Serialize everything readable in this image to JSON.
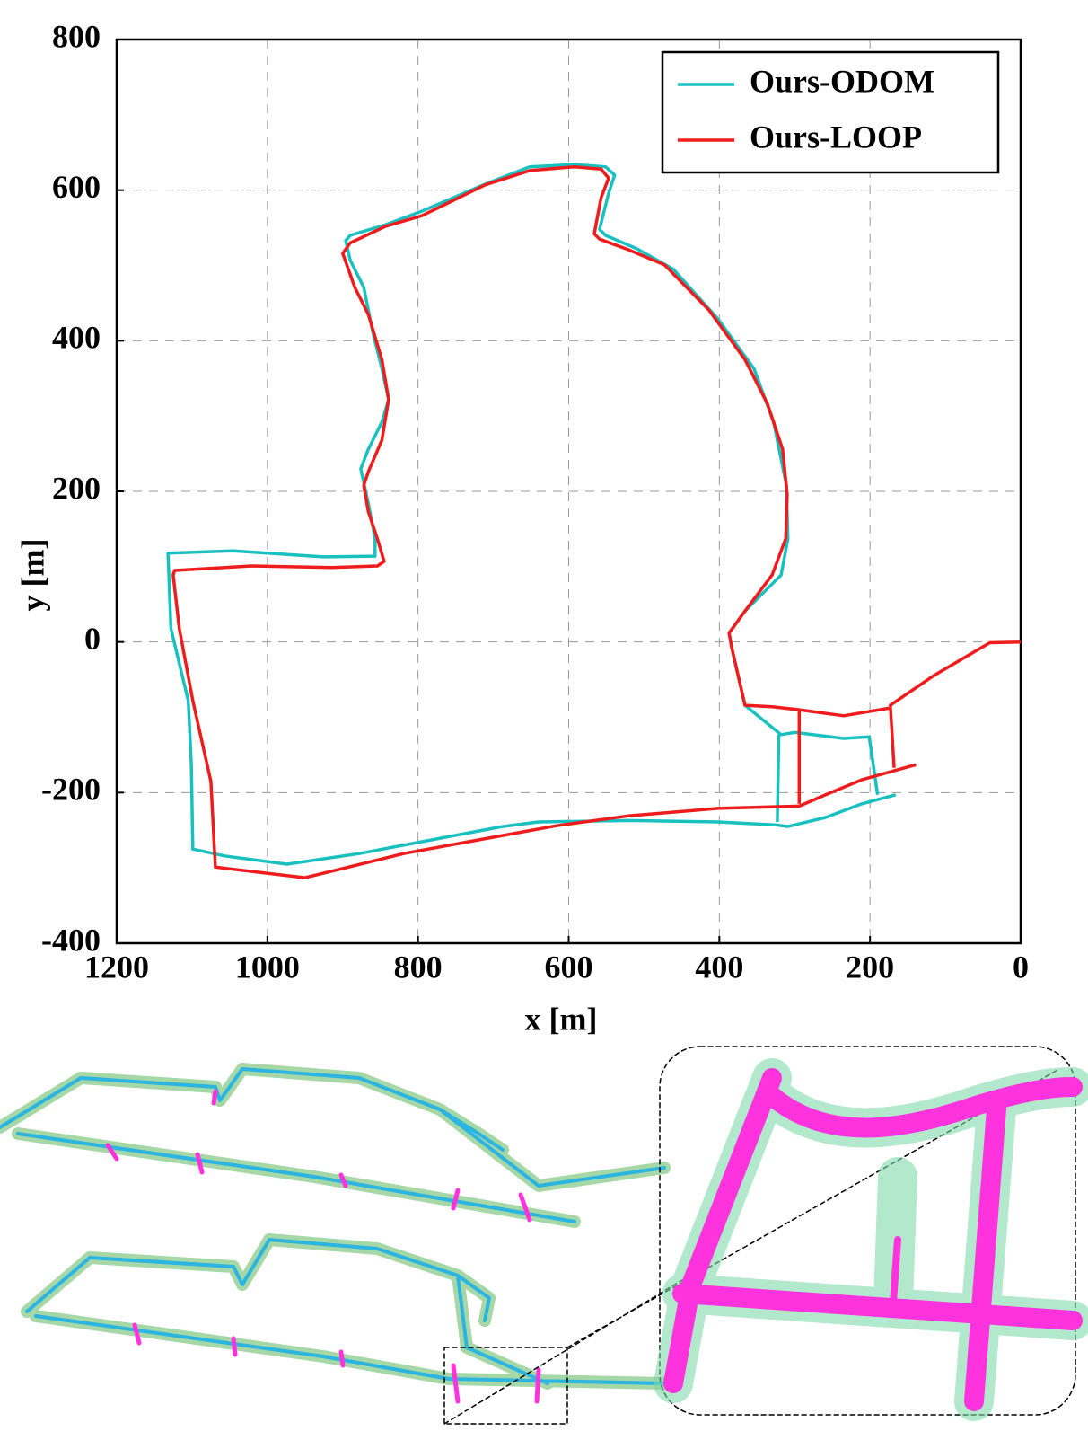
{
  "chart_data": {
    "type": "line",
    "xlabel": "x [m]",
    "ylabel": "y [m]",
    "xlim": [
      1200,
      0
    ],
    "ylim": [
      -400,
      800
    ],
    "xticks": [
      1200,
      1000,
      800,
      600,
      400,
      200,
      0
    ],
    "yticks": [
      -400,
      -200,
      0,
      200,
      400,
      600,
      800
    ],
    "grid": true,
    "legend": "upper right",
    "series": [
      {
        "name": "Ours-ODOM",
        "color": "#19c0c0",
        "x": [
          166,
          211,
          259,
          309,
          324,
          402,
          521,
          640,
          688,
          783,
          878,
          974,
          1057,
          1099,
          1101,
          1105,
          1128,
          1132,
          1045,
          926,
          857,
          857,
          866,
          876,
          866,
          848,
          839,
          848,
          860,
          872,
          890,
          896,
          890,
          843,
          795,
          711,
          652,
          592,
          551,
          539,
          547,
          559,
          551,
          509,
          461,
          402,
          354,
          328,
          311,
          309,
          318,
          366,
          387,
          384,
          366,
          318,
          300,
          235,
          201,
          190,
          null,
          321,
          323
        ],
        "values": [
          -203,
          -215,
          -233,
          -245,
          -243,
          -239,
          -237,
          -239,
          -245,
          -263,
          -281,
          -295,
          -284,
          -275,
          -161,
          -78,
          18,
          118,
          121,
          113,
          114,
          137,
          184,
          230,
          256,
          292,
          322,
          363,
          411,
          471,
          507,
          533,
          540,
          554,
          572,
          608,
          631,
          634,
          631,
          620,
          596,
          548,
          540,
          522,
          495,
          429,
          363,
          292,
          208,
          137,
          89,
          41,
          12,
          -6,
          -84,
          -123,
          -120,
          -128,
          -126,
          -203,
          null,
          -123,
          -239
        ]
      },
      {
        "name": "Ours-LOOP",
        "color": "#ee1c1c",
        "x": [
          0,
          41,
          116,
          173,
          168,
          null,
          139,
          211,
          259,
          294,
          402,
          521,
          616,
          688,
          819,
          950,
          1069,
          1075,
          1099,
          1117,
          1125,
          1123,
          1021,
          914,
          854,
          845,
          854,
          866,
          872,
          866,
          848,
          839,
          848,
          866,
          884,
          900,
          890,
          843,
          795,
          711,
          652,
          592,
          557,
          547,
          557,
          566,
          559,
          521,
          473,
          414,
          366,
          336,
          316,
          310,
          312,
          330,
          366,
          387,
          384,
          366,
          330,
          294,
          235,
          175,
          null,
          294,
          294
        ],
        "values": [
          0,
          -1,
          -45,
          -84,
          -167,
          null,
          -163,
          -183,
          -203,
          -218,
          -221,
          -231,
          -244,
          -257,
          -281,
          -313,
          -299,
          -185,
          -78,
          18,
          89,
          95,
          101,
          99,
          101,
          107,
          137,
          173,
          208,
          226,
          268,
          322,
          375,
          435,
          471,
          516,
          530,
          552,
          566,
          607,
          626,
          631,
          628,
          616,
          590,
          542,
          535,
          521,
          501,
          441,
          375,
          316,
          256,
          196,
          137,
          89,
          41,
          12,
          -6,
          -84,
          -86,
          -90,
          -98,
          -88,
          null,
          -90,
          -215
        ]
      }
    ]
  }
}
